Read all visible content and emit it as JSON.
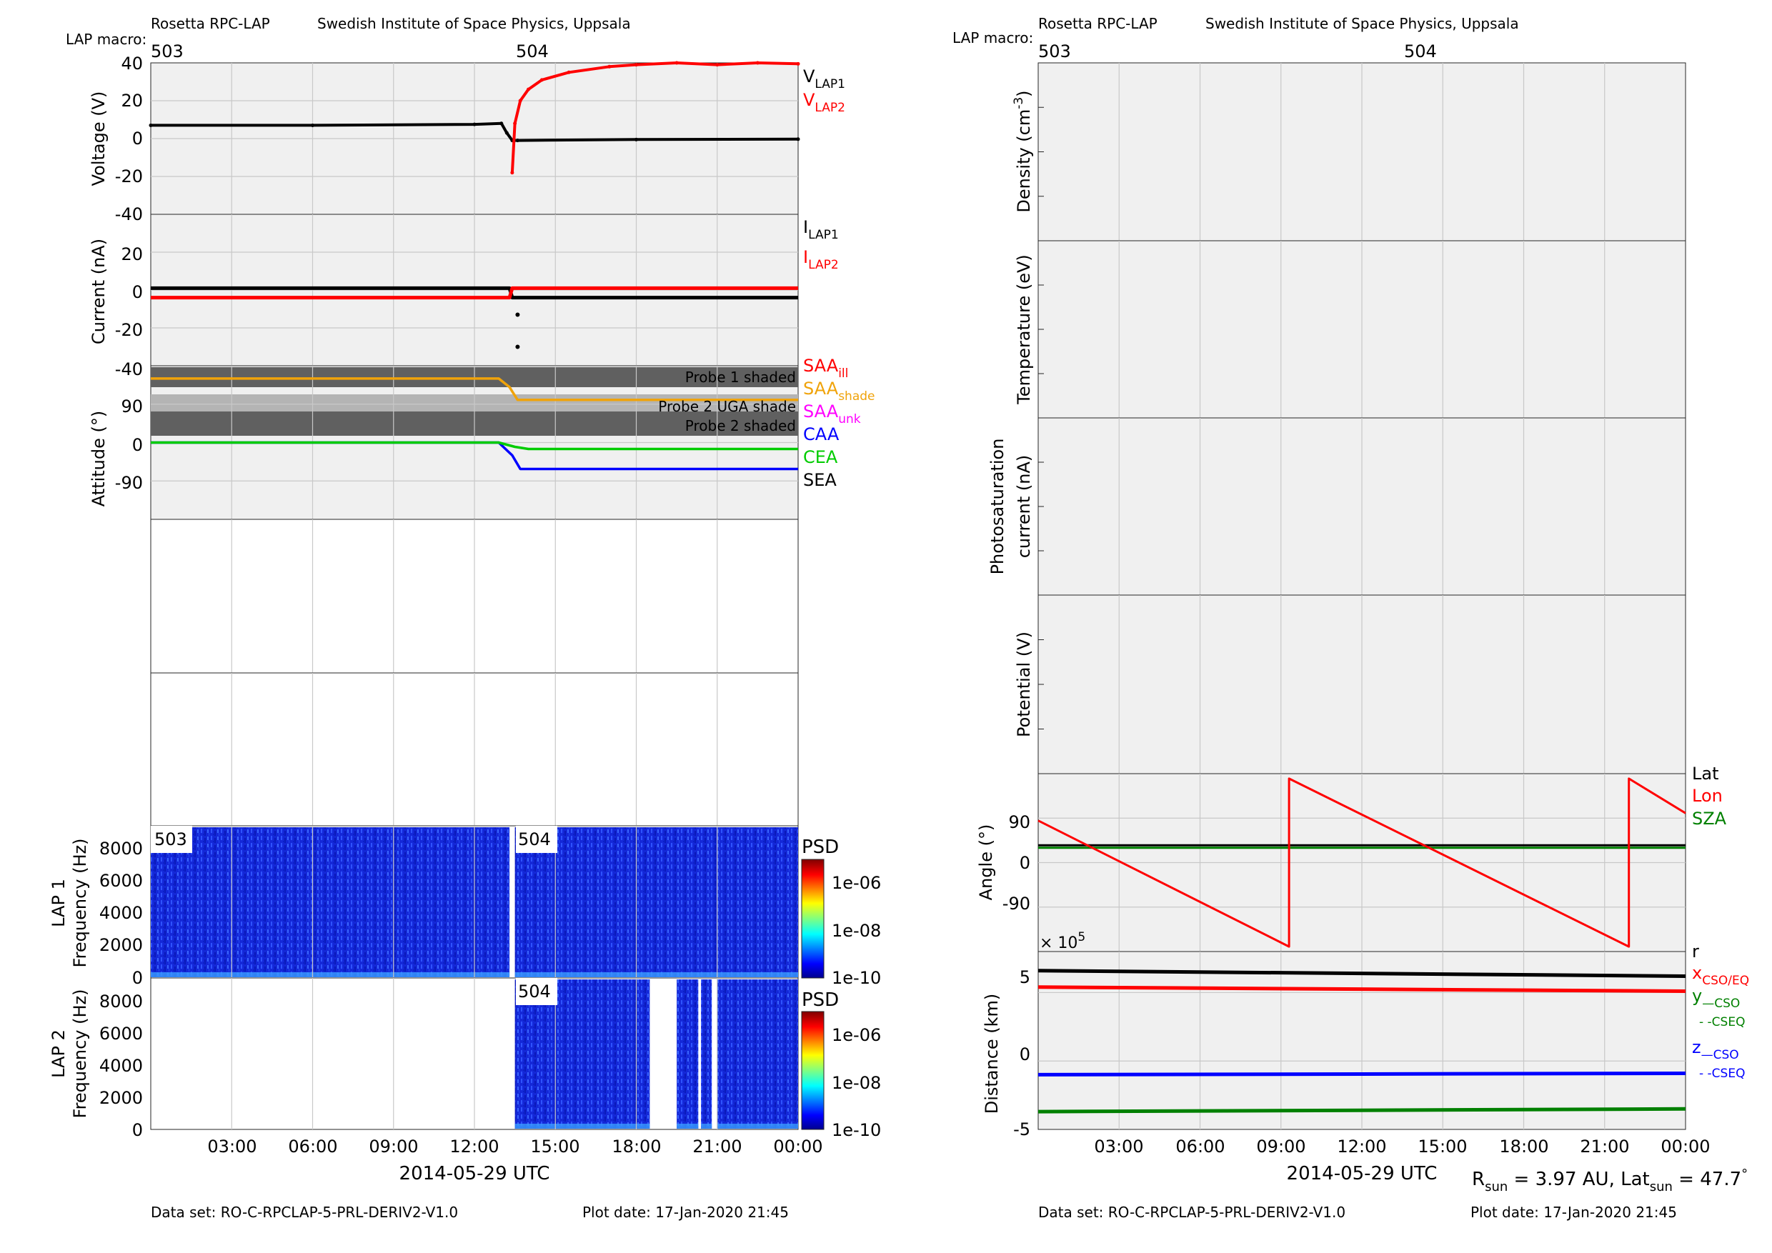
{
  "header": {
    "mission": "Rosetta RPC-LAP",
    "institute": "Swedish Institute of Space Physics, Uppsala",
    "macro_label": "LAP macro:",
    "macros": [
      "503",
      "504"
    ]
  },
  "footer": {
    "dataset": "Data set: RO-C-RPCLAP-5-PRL-DERIV2-V1.0",
    "plot_date": "Plot date: 17-Jan-2020 21:45",
    "rsun_text": "R",
    "rsun_sub": "sun",
    "rsun_value": " = 3.97 AU, Lat",
    "latsun_sub": "sun",
    "latsun_value": " = 47.7",
    "degree_sup": "°"
  },
  "xaxis": {
    "date_label": "2014-05-29 UTC",
    "ticks": [
      "03:00",
      "06:00",
      "09:00",
      "12:00",
      "15:00",
      "18:00",
      "21:00",
      "00:00"
    ]
  },
  "chart_data": [
    {
      "id": "voltage",
      "type": "scatter",
      "ylabel": "Voltage (V)",
      "ylim": [
        -40,
        40
      ],
      "yticks": [
        "40",
        "20",
        "0",
        "-20",
        "-40"
      ],
      "legend": [
        {
          "main": "V",
          "sub": "LAP1",
          "color": "#000000"
        },
        {
          "main": "V",
          "sub": "LAP2",
          "color": "#ff0000"
        }
      ],
      "series": [
        {
          "name": "VLAP1",
          "color": "#000000",
          "x": [
            0,
            6,
            12,
            13.0,
            13.2,
            13.4,
            13.6,
            18,
            24
          ],
          "y": [
            7,
            7,
            7.5,
            8,
            3,
            -1,
            -1,
            -0.5,
            -0.3
          ]
        },
        {
          "name": "VLAP2",
          "color": "#ff0000",
          "x": [
            13.4,
            13.5,
            13.7,
            14,
            14.5,
            15.5,
            17,
            18,
            19.5,
            21,
            22.5,
            24
          ],
          "y": [
            -18,
            8,
            20,
            26,
            31,
            35,
            38,
            39,
            40,
            39,
            40,
            39.5
          ]
        }
      ]
    },
    {
      "id": "current",
      "type": "scatter",
      "ylabel": "Current (nA)",
      "ylim": [
        -40,
        40
      ],
      "yticks": [
        "20",
        "0",
        "-20",
        "-40"
      ],
      "legend": [
        {
          "main": "I",
          "sub": "LAP1",
          "color": "#000000"
        },
        {
          "main": "I",
          "sub": "LAP2",
          "color": "#ff0000"
        }
      ],
      "series": [
        {
          "name": "ILAP1",
          "color": "#000000",
          "x": [
            0,
            13.3,
            13.4,
            24
          ],
          "y": [
            1,
            1,
            -4,
            -4
          ]
        },
        {
          "name": "ILAP2",
          "color": "#ff0000",
          "x": [
            0,
            13.3,
            13.4,
            24
          ],
          "y": [
            -4,
            -4,
            1,
            1
          ]
        }
      ],
      "outliers": {
        "x": [
          13.6,
          13.6
        ],
        "y": [
          -13,
          -30
        ]
      }
    },
    {
      "id": "attitude",
      "type": "line",
      "ylabel": "Attitude (°)",
      "ylim": [
        -180,
        180
      ],
      "yticks": [
        "90",
        "0",
        "-90"
      ],
      "shading": [
        "Probe 1 shaded",
        "Probe 2 UGA shade",
        "Probe 2 shaded"
      ],
      "legend": [
        {
          "main": "SAA",
          "sub": "ill",
          "color": "#ff0000"
        },
        {
          "main": "SAA",
          "sub": "shade",
          "color": "#f0a30a"
        },
        {
          "main": "SAA",
          "sub": "unk",
          "color": "#ff00ff"
        },
        {
          "main": "CAA",
          "sub": "",
          "color": "#0000ff"
        },
        {
          "main": "CEA",
          "sub": "",
          "color": "#00cc00"
        },
        {
          "main": "SEA",
          "sub": "",
          "color": "#000000"
        }
      ],
      "series": [
        {
          "name": "SAA",
          "color": "#f0a30a",
          "x": [
            0,
            12.9,
            13.3,
            13.6,
            24
          ],
          "y": [
            150,
            150,
            130,
            100,
            100
          ]
        },
        {
          "name": "CAA",
          "color": "#0000ff",
          "x": [
            0,
            12.9,
            13.4,
            13.7,
            24
          ],
          "y": [
            0,
            0,
            -30,
            -62,
            -62
          ]
        },
        {
          "name": "CEA",
          "color": "#00cc00",
          "x": [
            0,
            12.9,
            13.5,
            14.0,
            24
          ],
          "y": [
            0,
            0,
            -10,
            -15,
            -15
          ]
        }
      ]
    },
    {
      "id": "lap1_spectrogram",
      "type": "heatmap",
      "ylabel": "LAP 1",
      "ylabel2": "Frequency (Hz)",
      "ylim": [
        0,
        9500
      ],
      "yticks": [
        "8000",
        "6000",
        "4000",
        "2000",
        "0"
      ],
      "segments": [
        {
          "label": "503",
          "x": [
            0,
            13.3
          ]
        },
        {
          "label": "504",
          "x": [
            13.5,
            24
          ]
        }
      ],
      "colorbar": {
        "title": "PSD",
        "ticks": [
          "1e-06",
          "1e-08",
          "1e-10"
        ]
      }
    },
    {
      "id": "lap2_spectrogram",
      "type": "heatmap",
      "ylabel": "LAP 2",
      "ylabel2": "Frequency (Hz)",
      "ylim": [
        0,
        9500
      ],
      "yticks": [
        "8000",
        "6000",
        "4000",
        "2000",
        "0"
      ],
      "segments": [
        {
          "label": "504",
          "x": [
            13.5,
            18.5
          ]
        },
        {
          "x": [
            19.5,
            20.3
          ]
        },
        {
          "x": [
            20.4,
            20.8
          ]
        },
        {
          "x": [
            21.0,
            24
          ]
        }
      ],
      "colorbar": {
        "title": "PSD",
        "ticks": [
          "1e-06",
          "1e-08",
          "1e-10"
        ]
      }
    },
    {
      "id": "density",
      "type": "line",
      "ylabel": "Density (cm",
      "ylabel_sup": "-3",
      "ylabel_end": ")",
      "series": []
    },
    {
      "id": "temperature",
      "type": "line",
      "ylabel": "Temperature (eV)",
      "series": []
    },
    {
      "id": "photosaturation",
      "type": "line",
      "ylabel": "Photosaturation",
      "ylabel2": "current (nA)",
      "series": []
    },
    {
      "id": "potential",
      "type": "line",
      "ylabel": "Potential (V)",
      "series": []
    },
    {
      "id": "angle",
      "type": "line",
      "ylabel": "Angle (°)",
      "ylim": [
        -180,
        180
      ],
      "yticks": [
        "90",
        "0",
        "-90"
      ],
      "legend": [
        {
          "main": "Lat",
          "sub": "",
          "color": "#000000"
        },
        {
          "main": "Lon",
          "sub": "",
          "color": "#ff0000"
        },
        {
          "main": "SZA",
          "sub": "",
          "color": "#008000"
        }
      ],
      "series": [
        {
          "name": "Lat",
          "color": "#000000",
          "x": [
            0,
            24
          ],
          "y": [
            35,
            35
          ]
        },
        {
          "name": "SZA",
          "color": "#008000",
          "x": [
            0,
            24
          ],
          "y": [
            30,
            30
          ]
        },
        {
          "name": "Lon",
          "color": "#ff0000",
          "x": [
            0,
            9.3,
            9.3,
            21.9,
            21.9,
            24
          ],
          "y": [
            85,
            -170,
            170,
            -170,
            170,
            100
          ]
        }
      ]
    },
    {
      "id": "distance",
      "type": "line",
      "ylabel": "Distance (km)",
      "ylim": [
        -5,
        8
      ],
      "yticks": [
        "5",
        "0",
        "-5"
      ],
      "exponent": "5",
      "legend": [
        {
          "main": "r",
          "sub": "",
          "color": "#000000"
        },
        {
          "main": "x",
          "sub": "CSO/EQ",
          "color": "#ff0000"
        },
        {
          "main": "y",
          "sub": "—CSO",
          "sub2": "- -CSEQ",
          "color": "#008000"
        },
        {
          "main": "z",
          "sub": "—CSO",
          "sub2": "- -CSEQ",
          "color": "#0000ff"
        }
      ],
      "series": [
        {
          "name": "r",
          "color": "#000000",
          "x": [
            0,
            24
          ],
          "y": [
            6.6,
            6.2
          ]
        },
        {
          "name": "x",
          "color": "#ff0000",
          "x": [
            0,
            24
          ],
          "y": [
            5.4,
            5.1
          ]
        },
        {
          "name": "z",
          "color": "#0000ff",
          "x": [
            0,
            24
          ],
          "y": [
            -1.0,
            -0.9
          ]
        },
        {
          "name": "y",
          "color": "#008000",
          "x": [
            0,
            24
          ],
          "y": [
            -3.7,
            -3.5
          ]
        }
      ]
    }
  ]
}
